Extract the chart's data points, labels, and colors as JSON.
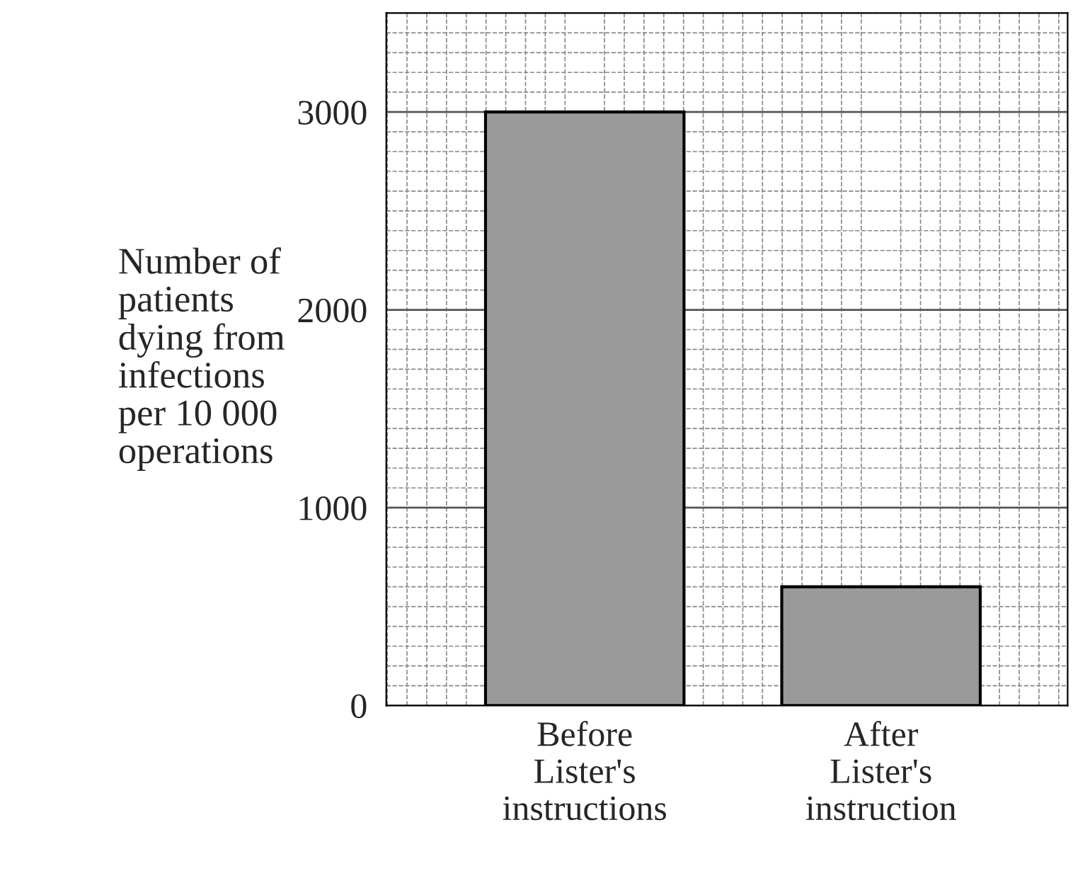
{
  "chart_data": {
    "type": "bar",
    "ylabel": "Number of\npatients\ndying from\ninfections\nper 10 000\noperations",
    "categories": [
      "Before\nLister's\ninstructions",
      "After\nLister's\ninstruction"
    ],
    "values": [
      3000,
      600
    ],
    "color": "#9a9a9a",
    "ylim": [
      0,
      3500
    ],
    "yticks": [
      0,
      1000,
      2000,
      3000
    ],
    "grid": true
  }
}
